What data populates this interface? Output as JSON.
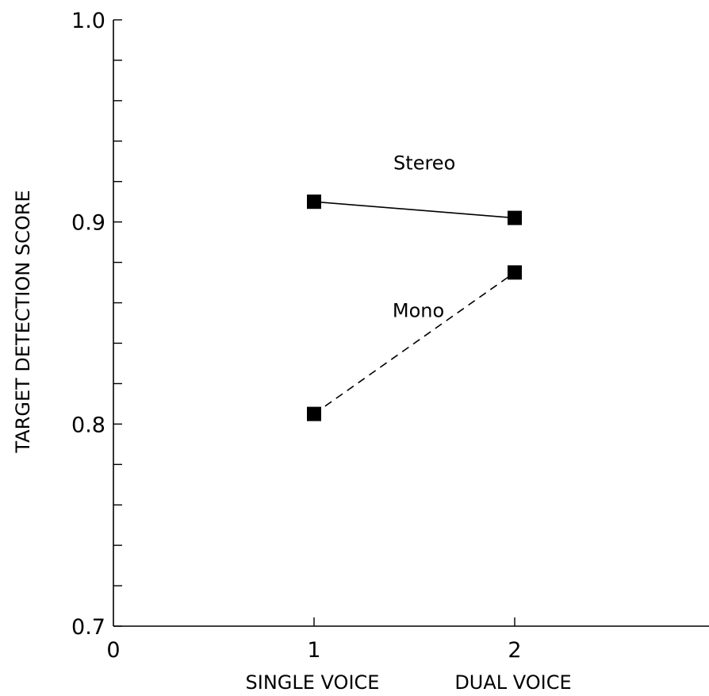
{
  "chart_data": {
    "type": "line",
    "title": "",
    "xlabel": "",
    "ylabel": "TARGET DETECTION SCORE",
    "xlim": [
      0,
      3
    ],
    "ylim": [
      0.7,
      1.0
    ],
    "x_ticks": [
      0,
      1,
      2
    ],
    "x_tick_labels": [
      "0",
      "1",
      "2"
    ],
    "x_category_labels": [
      {
        "x": 1,
        "label": "SINGLE VOICE"
      },
      {
        "x": 2,
        "label": "DUAL VOICE"
      }
    ],
    "y_major_ticks": [
      0.7,
      0.8,
      0.9,
      1.0
    ],
    "y_tick_labels": [
      "0.7",
      "0.8",
      "0.9",
      "1.0"
    ],
    "y_minor_step": 0.02,
    "grid": false,
    "legend": "inline",
    "series": [
      {
        "name": "Stereo",
        "x": [
          1,
          2
        ],
        "y": [
          0.91,
          0.902
        ],
        "line_style": "solid",
        "marker": "square",
        "label_anchor": {
          "x": 1.55,
          "y": 0.926
        }
      },
      {
        "name": "Mono",
        "x": [
          1,
          2
        ],
        "y": [
          0.805,
          0.875
        ],
        "line_style": "dashed",
        "marker": "square",
        "label_anchor": {
          "x": 1.52,
          "y": 0.853
        }
      }
    ]
  }
}
